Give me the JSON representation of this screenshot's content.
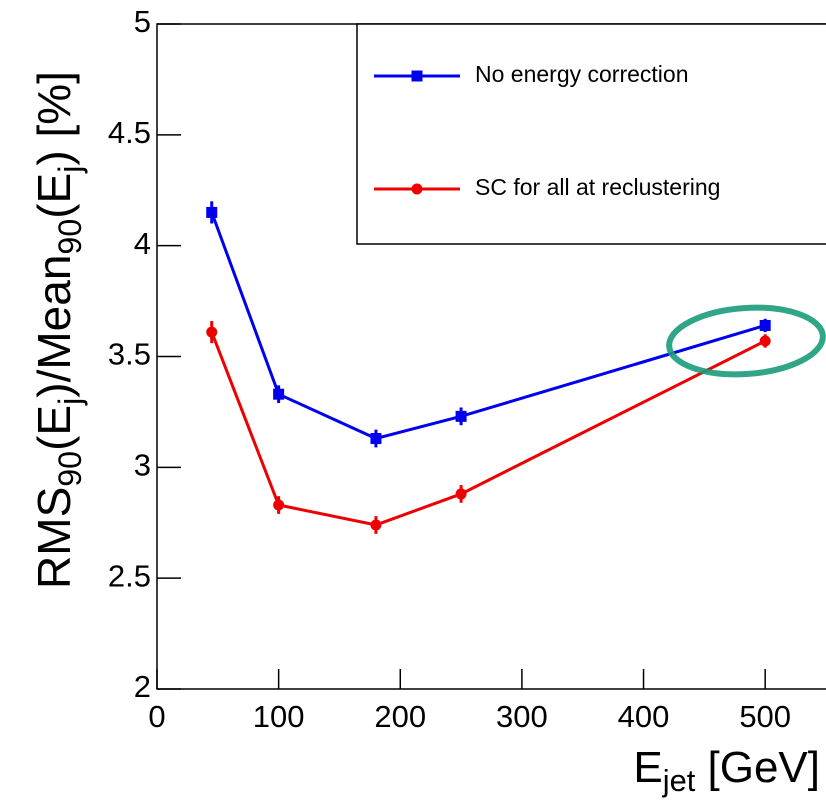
{
  "chart_data": {
    "type": "line",
    "ylabel": [
      "RMS",
      "90",
      "(E",
      "j",
      ")/Mean",
      "90",
      "(E",
      "j",
      ") [%]"
    ],
    "xlabel": [
      "E",
      "jet",
      " [GeV]"
    ],
    "x": [
      45,
      100,
      180,
      250,
      500
    ],
    "series": [
      {
        "name": "No energy correction",
        "color": "#0000ee",
        "marker": "square",
        "values": [
          4.15,
          3.33,
          3.13,
          3.23,
          3.64
        ],
        "errors": [
          0.05,
          0.04,
          0.04,
          0.04,
          0.03
        ]
      },
      {
        "name": "SC for all at reclustering",
        "color": "#ee0000",
        "marker": "circle",
        "values": [
          3.61,
          2.83,
          2.74,
          2.88,
          3.57
        ],
        "errors": [
          0.05,
          0.04,
          0.04,
          0.04,
          0.03
        ]
      }
    ],
    "xlim": [
      0,
      550
    ],
    "ylim": [
      2,
      5
    ],
    "xticks": [
      0,
      100,
      200,
      300,
      400,
      500
    ],
    "yticks": [
      2,
      2.5,
      3,
      3.5,
      4,
      4.5,
      5
    ],
    "legend": "top-right"
  }
}
